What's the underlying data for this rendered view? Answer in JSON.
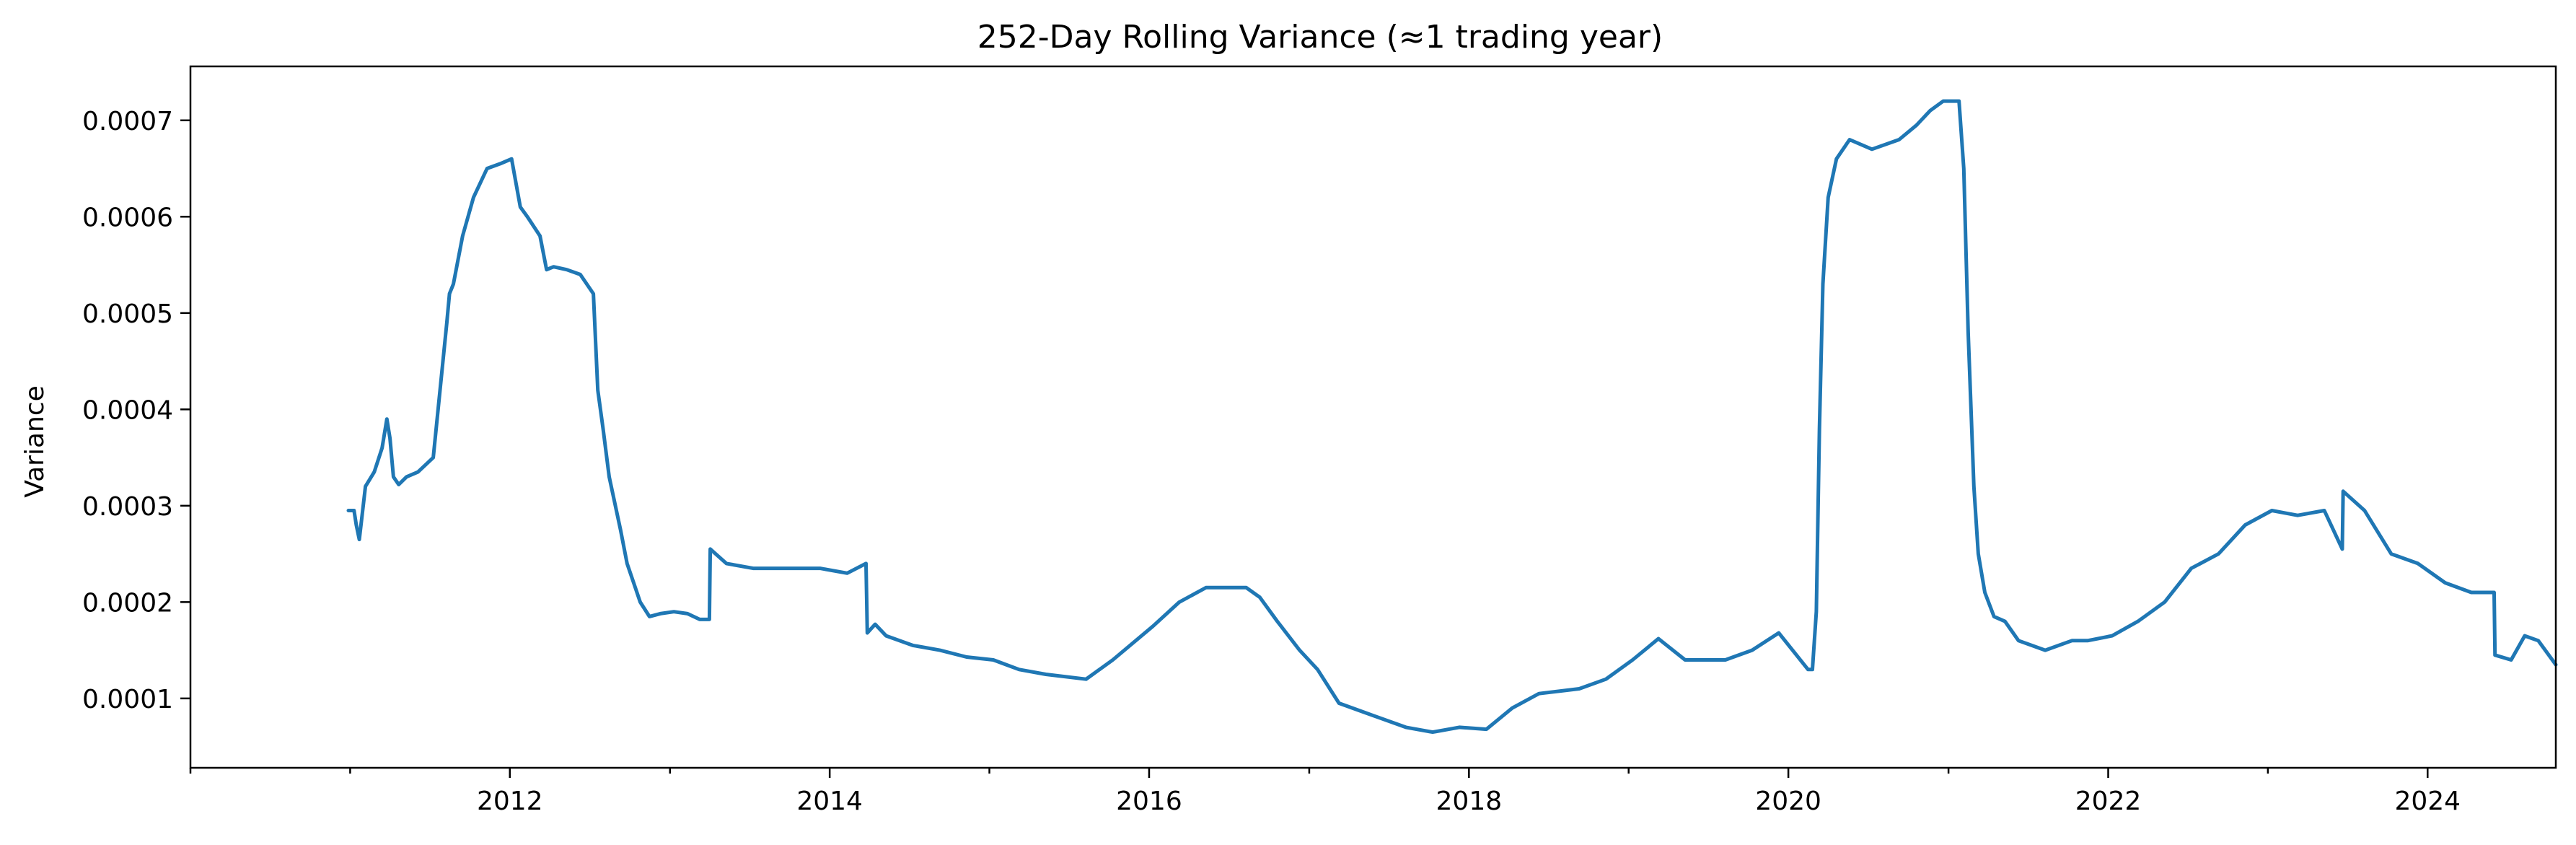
{
  "chart_data": {
    "type": "line",
    "title": "252-Day Rolling Variance (≈1 trading year)",
    "xlabel": "",
    "ylabel": "Variance",
    "xlim": [
      "2010-01-01",
      "2024-10-20"
    ],
    "ylim": [
      2.8e-05,
      0.000756
    ],
    "grid": false,
    "legend": "none",
    "line_color": "#1f77b4",
    "x_ticks": [
      {
        "date": "2010-01-01",
        "label": ""
      },
      {
        "date": "2011-01-01",
        "label": ""
      },
      {
        "date": "2012-01-01",
        "label": "2012"
      },
      {
        "date": "2013-01-01",
        "label": ""
      },
      {
        "date": "2014-01-01",
        "label": "2014"
      },
      {
        "date": "2015-01-01",
        "label": ""
      },
      {
        "date": "2016-01-01",
        "label": "2016"
      },
      {
        "date": "2017-01-01",
        "label": ""
      },
      {
        "date": "2018-01-01",
        "label": "2018"
      },
      {
        "date": "2019-01-01",
        "label": ""
      },
      {
        "date": "2020-01-01",
        "label": "2020"
      },
      {
        "date": "2021-01-01",
        "label": ""
      },
      {
        "date": "2022-01-01",
        "label": "2022"
      },
      {
        "date": "2023-01-01",
        "label": ""
      },
      {
        "date": "2024-01-01",
        "label": "2024"
      }
    ],
    "y_ticks": [
      {
        "value": 0.0001,
        "label": "0.0001"
      },
      {
        "value": 0.0002,
        "label": "0.0002"
      },
      {
        "value": 0.0003,
        "label": "0.0003"
      },
      {
        "value": 0.0004,
        "label": "0.0004"
      },
      {
        "value": 0.0005,
        "label": "0.0005"
      },
      {
        "value": 0.0006,
        "label": "0.0006"
      },
      {
        "value": 0.0007,
        "label": "0.0007"
      }
    ],
    "series": [
      {
        "x": [
          "2010-12-28",
          "2011-01-10",
          "2011-01-15",
          "2011-01-22",
          "2011-02-05",
          "2011-02-25",
          "2011-03-15",
          "2011-03-26",
          "2011-04-02",
          "2011-04-10",
          "2011-04-22",
          "2011-05-10",
          "2011-06-05",
          "2011-07-10",
          "2011-08-10",
          "2011-08-16",
          "2011-08-25",
          "2011-09-15",
          "2011-10-10",
          "2011-11-10",
          "2011-12-10",
          "2012-01-05",
          "2012-01-25",
          "2012-02-10",
          "2012-03-10",
          "2012-03-25",
          "2012-04-10",
          "2012-05-10",
          "2012-06-10",
          "2012-07-10",
          "2012-07-20",
          "2012-08-01",
          "2012-08-15",
          "2012-09-10",
          "2012-09-25",
          "2012-10-10",
          "2012-10-25",
          "2012-11-15",
          "2012-12-10",
          "2013-01-10",
          "2013-02-10",
          "2013-03-10",
          "2013-04-01",
          "2013-04-03",
          "2013-05-10",
          "2013-07-10",
          "2013-09-10",
          "2013-12-10",
          "2014-02-10",
          "2014-03-25",
          "2014-03-28",
          "2014-04-15",
          "2014-05-10",
          "2014-07-10",
          "2014-09-10",
          "2014-11-10",
          "2015-01-10",
          "2015-03-10",
          "2015-05-10",
          "2015-08-10",
          "2015-10-10",
          "2016-01-10",
          "2016-03-10",
          "2016-05-10",
          "2016-08-10",
          "2016-09-10",
          "2016-10-20",
          "2016-12-10",
          "2017-01-20",
          "2017-03-10",
          "2017-05-10",
          "2017-08-10",
          "2017-10-10",
          "2017-12-10",
          "2018-02-10",
          "2018-04-10",
          "2018-06-10",
          "2018-09-10",
          "2018-11-10",
          "2019-01-10",
          "2019-03-10",
          "2019-05-10",
          "2019-08-10",
          "2019-10-10",
          "2019-12-10",
          "2020-02-15",
          "2020-02-25",
          "2020-03-05",
          "2020-03-12",
          "2020-03-20",
          "2020-04-01",
          "2020-04-20",
          "2020-05-20",
          "2020-07-10",
          "2020-09-10",
          "2020-10-20",
          "2020-11-20",
          "2020-12-20",
          "2021-01-25",
          "2021-02-05",
          "2021-02-15",
          "2021-02-28",
          "2021-03-10",
          "2021-03-25",
          "2021-04-15",
          "2021-05-10",
          "2021-06-10",
          "2021-08-10",
          "2021-10-10",
          "2021-11-15",
          "2022-01-10",
          "2022-03-10",
          "2022-05-10",
          "2022-07-10",
          "2022-09-10",
          "2022-11-10",
          "2023-01-10",
          "2023-03-10",
          "2023-05-10",
          "2023-06-20",
          "2023-06-22",
          "2023-08-10",
          "2023-10-10",
          "2023-12-10",
          "2024-02-10",
          "2024-04-10",
          "2024-06-01",
          "2024-06-03",
          "2024-07-10",
          "2024-08-10",
          "2024-09-10",
          "2024-10-20"
        ],
        "y": [
          0.000295,
          0.000295,
          0.00028,
          0.000265,
          0.00032,
          0.000335,
          0.00036,
          0.00039,
          0.00037,
          0.00033,
          0.000322,
          0.00033,
          0.000335,
          0.00035,
          0.00049,
          0.00052,
          0.00053,
          0.00058,
          0.00062,
          0.00065,
          0.000655,
          0.00066,
          0.00061,
          0.0006,
          0.00058,
          0.000545,
          0.000548,
          0.000545,
          0.00054,
          0.00052,
          0.00042,
          0.00038,
          0.00033,
          0.000275,
          0.00024,
          0.00022,
          0.0002,
          0.000185,
          0.000188,
          0.00019,
          0.000188,
          0.000182,
          0.000182,
          0.000255,
          0.00024,
          0.000235,
          0.000235,
          0.000235,
          0.00023,
          0.00024,
          0.000168,
          0.000177,
          0.000165,
          0.000155,
          0.00015,
          0.000143,
          0.00014,
          0.00013,
          0.000125,
          0.00012,
          0.00014,
          0.000175,
          0.0002,
          0.000215,
          0.000215,
          0.000205,
          0.00018,
          0.00015,
          0.00013,
          9.5e-05,
          8.5e-05,
          7e-05,
          6.5e-05,
          7e-05,
          6.8e-05,
          9e-05,
          0.000105,
          0.00011,
          0.00012,
          0.00014,
          0.000162,
          0.00014,
          0.00014,
          0.00015,
          0.000168,
          0.00013,
          0.00013,
          0.00019,
          0.00038,
          0.00053,
          0.00062,
          0.00066,
          0.00068,
          0.00067,
          0.00068,
          0.000695,
          0.00071,
          0.00072,
          0.00072,
          0.00065,
          0.00048,
          0.00032,
          0.00025,
          0.00021,
          0.000185,
          0.00018,
          0.00016,
          0.00015,
          0.00016,
          0.00016,
          0.000165,
          0.00018,
          0.0002,
          0.000235,
          0.00025,
          0.00028,
          0.000295,
          0.00029,
          0.000295,
          0.000255,
          0.000315,
          0.000295,
          0.00025,
          0.00024,
          0.00022,
          0.00021,
          0.00021,
          0.000145,
          0.00014,
          0.000165,
          0.00016,
          0.000135
        ]
      }
    ]
  }
}
